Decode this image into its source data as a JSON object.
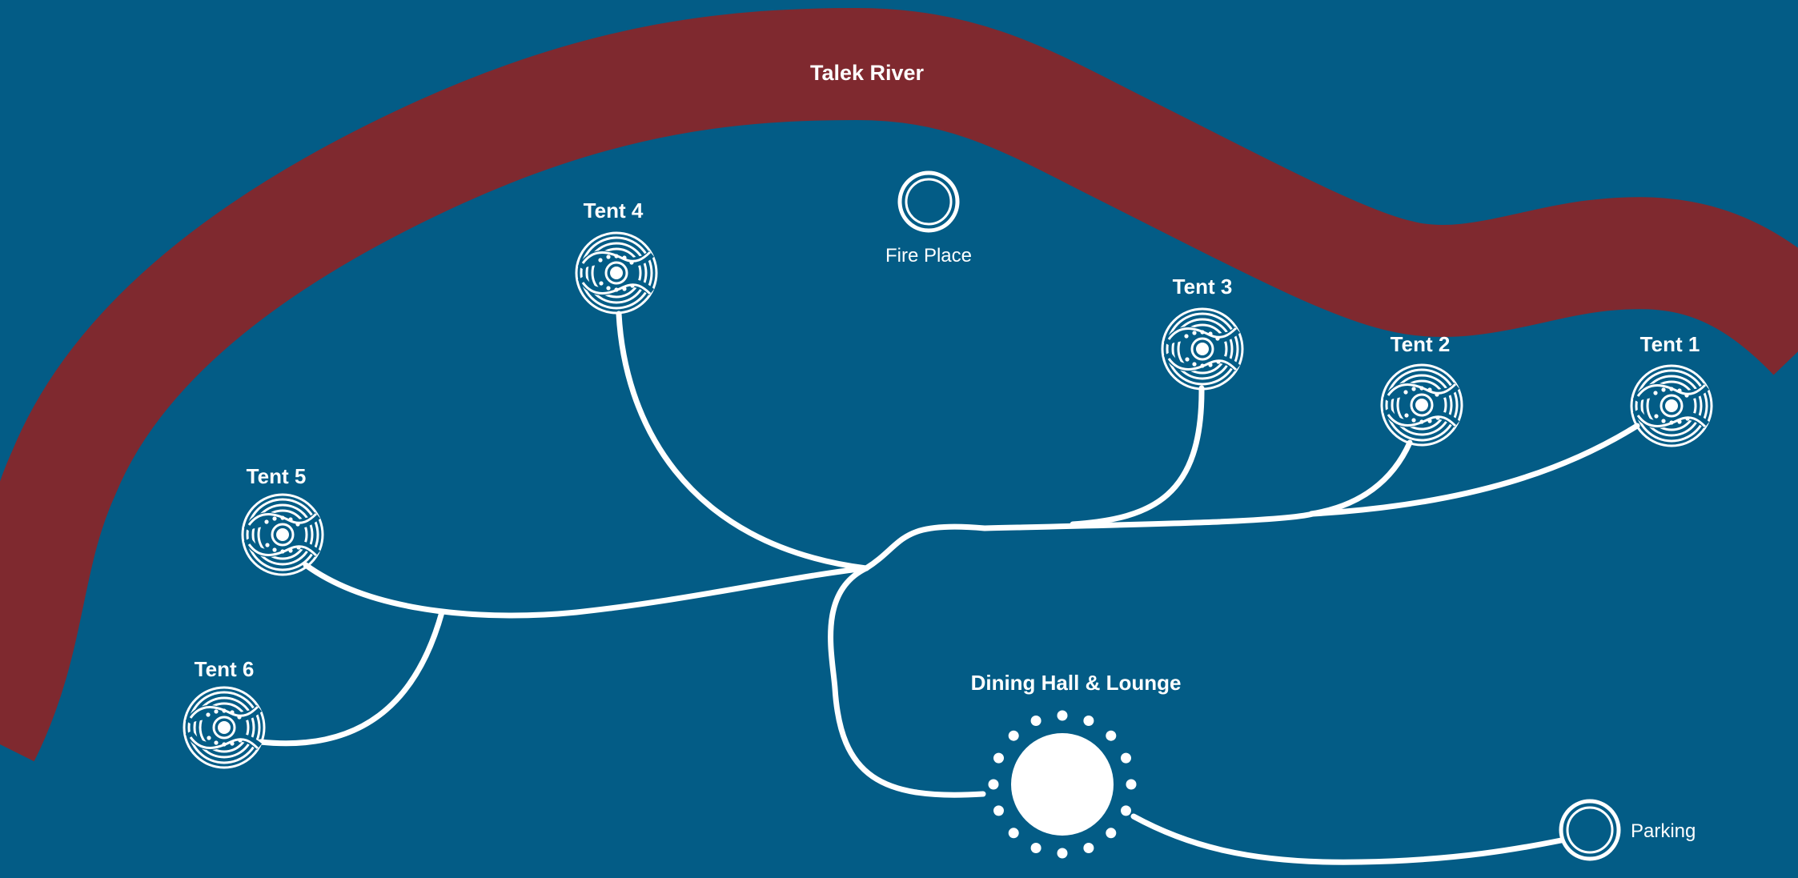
{
  "colors": {
    "background": "#035c86",
    "river": "#7f292f",
    "paths": "#ffffff"
  },
  "river": {
    "label": "Talek River"
  },
  "fire_place": {
    "label": "Fire Place",
    "icon": "ring-icon"
  },
  "tents": [
    {
      "label": "Tent 1",
      "icon": "tent-emblem-icon"
    },
    {
      "label": "Tent 2",
      "icon": "tent-emblem-icon"
    },
    {
      "label": "Tent 3",
      "icon": "tent-emblem-icon"
    },
    {
      "label": "Tent 4",
      "icon": "tent-emblem-icon"
    },
    {
      "label": "Tent 5",
      "icon": "tent-emblem-icon"
    },
    {
      "label": "Tent 6",
      "icon": "tent-emblem-icon"
    }
  ],
  "dining": {
    "label": "Dining Hall & Lounge",
    "icon": "sun-icon"
  },
  "parking": {
    "label": "Parking",
    "icon": "ring-icon"
  }
}
